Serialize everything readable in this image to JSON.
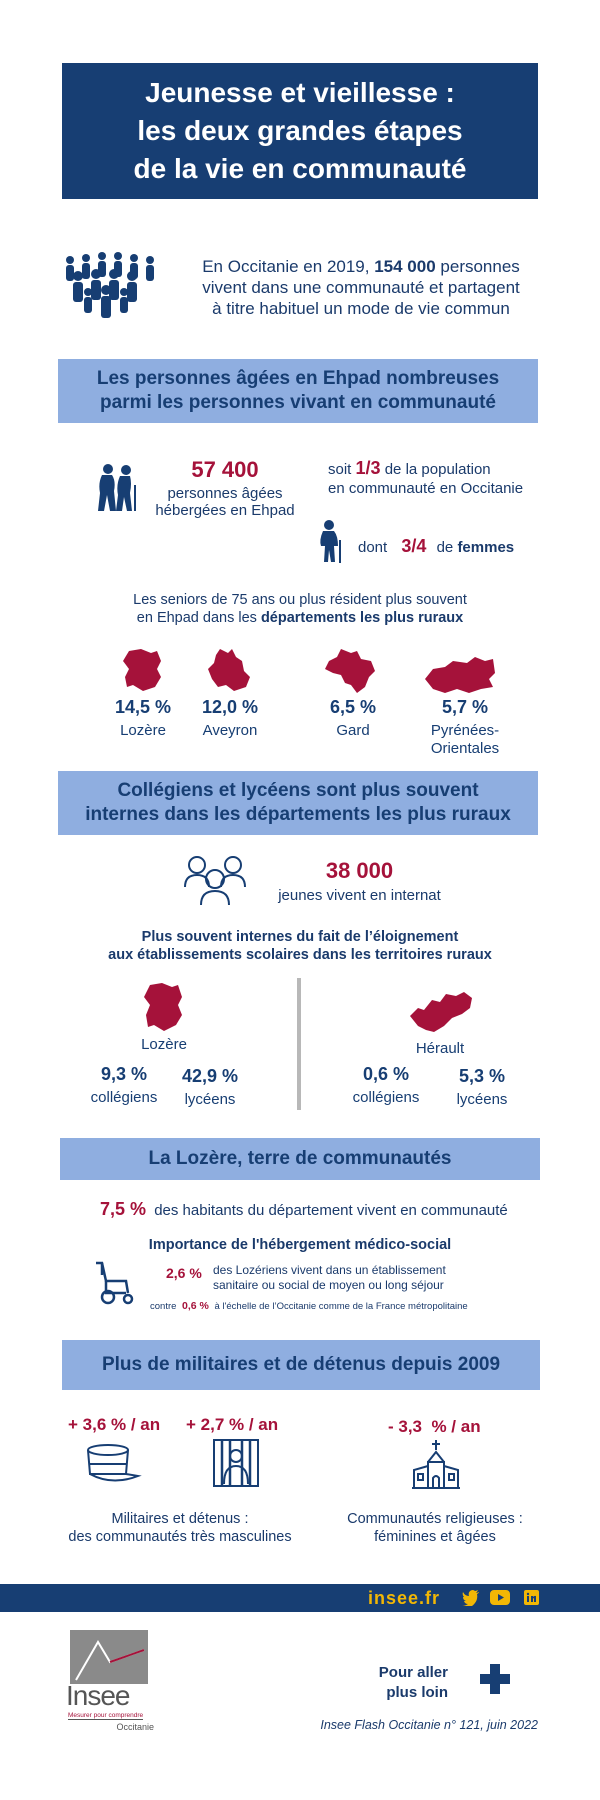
{
  "title": {
    "line1": "Jeunesse et vieillesse :",
    "line2": "les deux grandes étapes",
    "line3": "de la vie en communauté"
  },
  "intro": {
    "text1": "En Occitanie en 2019,",
    "highlight": "154 000",
    "text2": "personnes",
    "line2": "vivent dans une communauté et partagent",
    "line3": "à titre habituel un mode de vie commun"
  },
  "section1": {
    "heading_line1": "Les personnes âgées en Ehpad nombreuses",
    "heading_line2": "parmi les personnes vivant en communauté",
    "ehpad_count": "57 400",
    "ehpad_label_line1": "personnes âgées",
    "ehpad_label_line2": "hébergées en Ehpad",
    "share_prefix": "soit",
    "share_value": "1/3",
    "share_text1": "de la population",
    "share_text2": "en communauté en Occitanie",
    "women_prefix": "dont",
    "women_value": "3/4",
    "women_text_pre": "de",
    "women_text": "femmes",
    "seniors_line1": "Les seniors de 75 ans ou plus résident plus souvent",
    "seniors_line2_pre": "en Ehpad dans les",
    "seniors_line2_bold": "départements les plus ruraux",
    "departments": [
      {
        "pct": "14,5 %",
        "name": "Lozère"
      },
      {
        "pct": "12,0 %",
        "name": "Aveyron"
      },
      {
        "pct": "6,5 %",
        "name": "Gard"
      },
      {
        "pct": "5,7 %",
        "name_line1": "Pyrénées-",
        "name_line2": "Orientales"
      }
    ]
  },
  "section2": {
    "heading_line1": "Collégiens et lycéens sont plus souvent",
    "heading_line2": "internes dans les départements les plus ruraux",
    "internat_count": "38 000",
    "internat_label": "jeunes vivent en internat",
    "sub_line1": "Plus souvent internes du fait de l’éloignement",
    "sub_line2": "aux établissements scolaires dans les territoires ruraux",
    "lozere": {
      "name": "Lozère",
      "college_pct": "9,3 %",
      "college_label": "collégiens",
      "lycee_pct": "42,9 %",
      "lycee_label": "lycéens"
    },
    "herault": {
      "name": "Hérault",
      "college_pct": "0,6 %",
      "college_label": "collégiens",
      "lycee_pct": "5,3 %",
      "lycee_label": "lycéens"
    }
  },
  "section3": {
    "heading": "La Lozère, terre de communautés",
    "pct": "7,5 %",
    "pct_text": "des habitants du département vivent en communauté",
    "sub_heading": "Importance de l'hébergement médico-social",
    "medico_pct": "2,6 %",
    "medico_line1": "des Lozériens vivent dans un établissement",
    "medico_line2": "sanitaire ou social de moyen ou long séjour",
    "contre_label": "contre",
    "contre_pct": "0,6 %",
    "contre_text": "à l'échelle de l’Occitanie comme de la France métropolitaine"
  },
  "section4": {
    "heading": "Plus de militaires et de détenus depuis 2009",
    "military_rate": "+ 3,6 % / an",
    "prison_rate": "+ 2,7 % / an",
    "religious_rate": "- 3,3  % / an",
    "left_label_line1": "Militaires et détenus :",
    "left_label_line2": "des communautés très masculines",
    "right_label_line1": "Communautés religieuses :",
    "right_label_line2": "féminines et âgées"
  },
  "footer": {
    "site": "insee.fr",
    "logo_text": "Insee",
    "logo_tagline": "Mesurer pour comprendre",
    "logo_region": "Occitanie",
    "more_line1": "Pour aller",
    "more_line2": "plus loin",
    "source": "Insee Flash Occitanie n° 121, juin 2022"
  },
  "colors": {
    "navy": "#173e73",
    "band": "#8faee0",
    "accent_red": "#a5123a",
    "gold": "#f2b705"
  },
  "icons": [
    "crowd-icon",
    "elderly-couple-icon",
    "elderly-woman-icon",
    "students-icon",
    "wheelchair-icon",
    "kepi-icon",
    "prison-icon",
    "church-icon",
    "twitter-icon",
    "youtube-icon",
    "linkedin-icon",
    "plus-icon"
  ]
}
